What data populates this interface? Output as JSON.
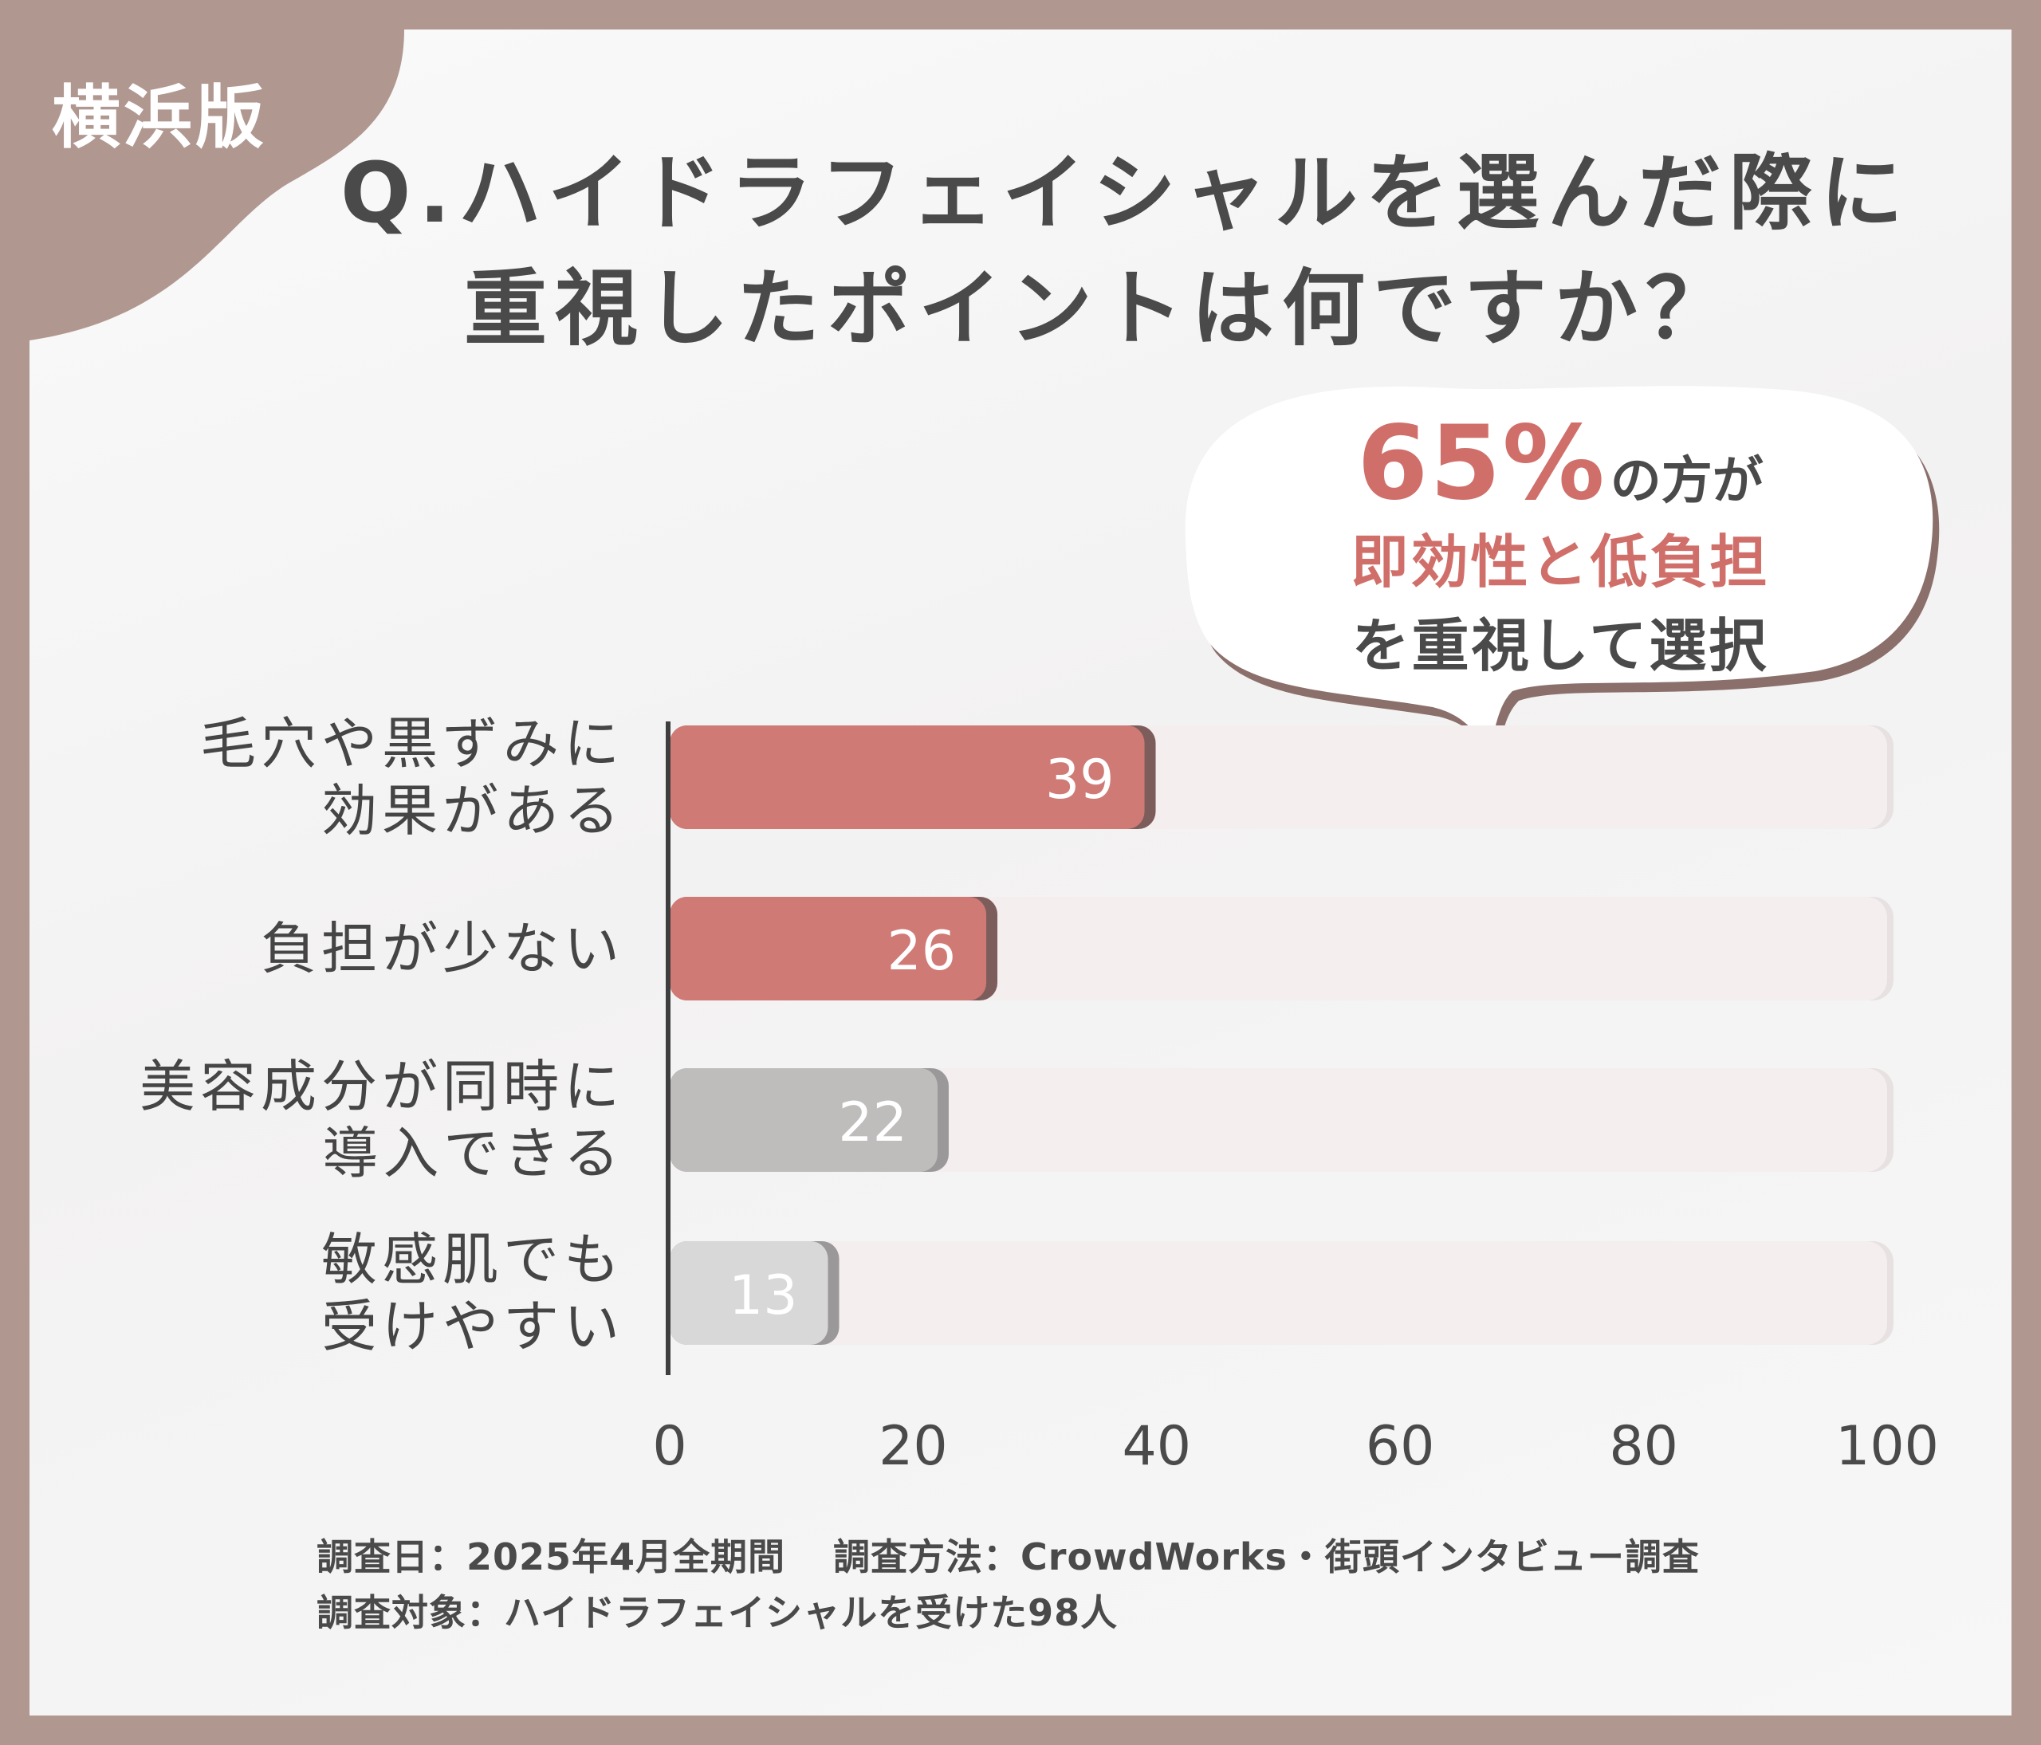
{
  "badge": "横浜版",
  "title": {
    "line1": "Q.ハイドラフェイシャルを選んだ際に",
    "line2": "重視したポイントは何ですか？"
  },
  "callout": {
    "percent": "65%",
    "suffix": "の方が",
    "highlight": "即効性と低負担",
    "rest": "を重視して選択"
  },
  "chart_data": {
    "type": "bar",
    "orientation": "horizontal",
    "categories": [
      [
        "毛穴や黒ずみに",
        "効果がある"
      ],
      [
        "負担が少ない"
      ],
      [
        "美容成分が同時に",
        "導入できる"
      ],
      [
        "敏感肌でも",
        "受けやすい"
      ]
    ],
    "values": [
      39,
      26,
      22,
      13
    ],
    "value_labels": [
      "39",
      "26",
      "22",
      "13"
    ],
    "xlim": [
      0,
      100
    ],
    "xticks": [
      "0",
      "20",
      "40",
      "60",
      "80",
      "100"
    ],
    "bar_colors": [
      "#d07a76",
      "#d07a76",
      "#bfbcbc",
      "#d9d8d8"
    ],
    "track_color": "#f4eeee",
    "grid": false,
    "legend": "none"
  },
  "footer": {
    "survey_date": "調査日：2025年4月全期間",
    "survey_method": "調査方法：CrowdWorks・街頭インタビュー調査",
    "survey_target": "調査対象：ハイドラフェイシャルを受けた98人"
  },
  "colors": {
    "frame": "#b09790",
    "accent": "#d06f6a",
    "text": "#4a4a4a"
  }
}
